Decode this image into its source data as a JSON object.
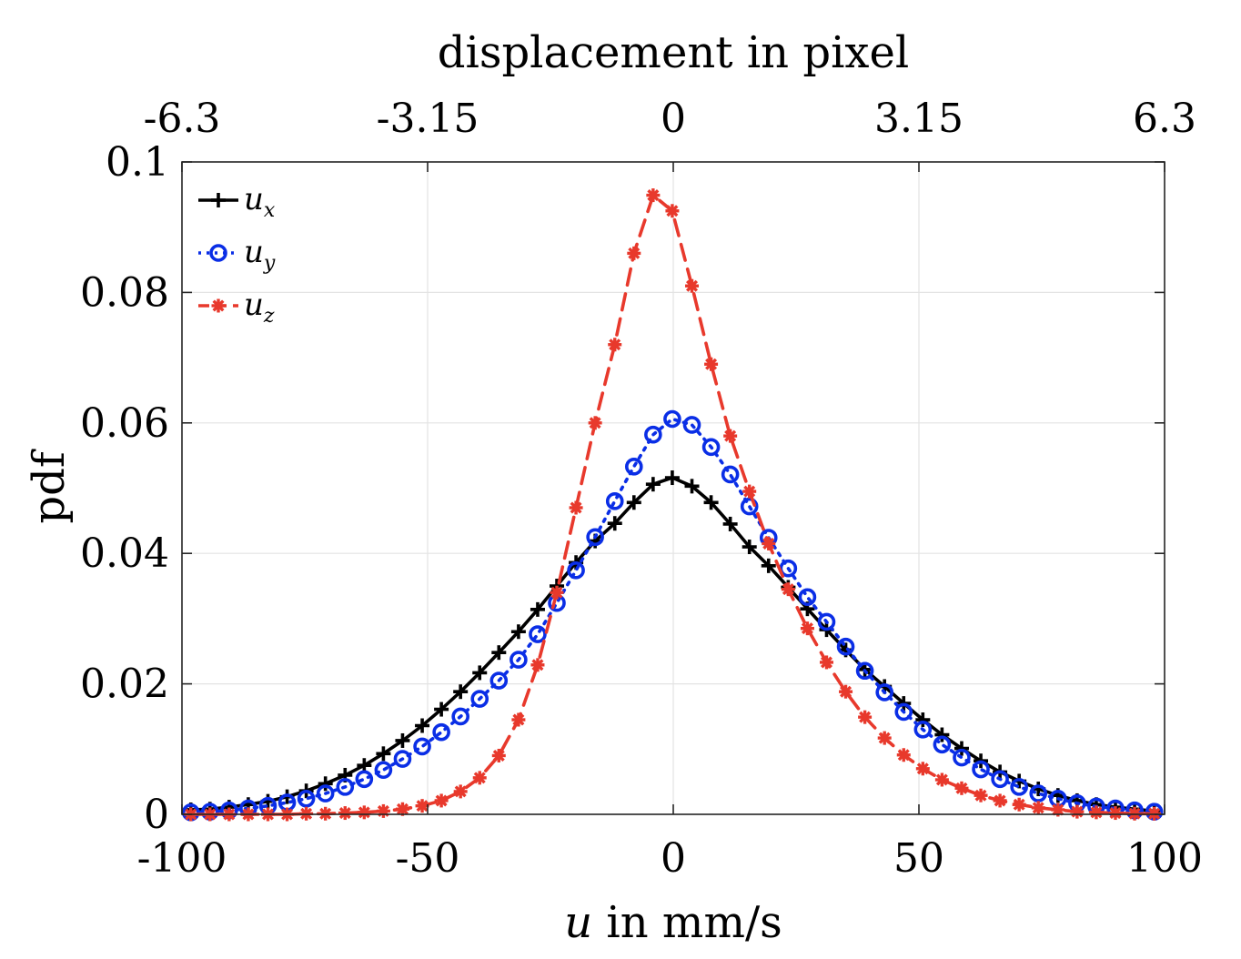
{
  "chart_data": {
    "type": "line",
    "xlabel_var": "u",
    "xlabel_rest": " in mm/s",
    "ylabel": "pdf",
    "top_xlabel": "displacement in pixel",
    "xlim": [
      -100,
      100
    ],
    "ylim": [
      0,
      0.1
    ],
    "xticks": [
      -100,
      -50,
      0,
      50,
      100
    ],
    "xtick_labels": [
      "-100",
      "-50",
      "0",
      "50",
      "100"
    ],
    "yticks": [
      0,
      0.02,
      0.04,
      0.06,
      0.08,
      0.1
    ],
    "ytick_labels": [
      "0",
      "0.02",
      "0.04",
      "0.06",
      "0.08",
      "0.1"
    ],
    "top_xticks": [
      -100,
      -50,
      0,
      50,
      100
    ],
    "top_xtick_labels": [
      "-6.3",
      "-3.15",
      "0",
      "3.15",
      "6.3"
    ],
    "grid": true,
    "legend_position": "top-left",
    "x": [
      -98.2,
      -94.3,
      -90.4,
      -86.5,
      -82.5,
      -78.6,
      -74.7,
      -70.8,
      -66.8,
      -62.9,
      -59.0,
      -55.1,
      -51.1,
      -47.2,
      -43.3,
      -39.4,
      -35.5,
      -31.5,
      -27.6,
      -23.7,
      -19.8,
      -15.9,
      -11.9,
      -8.0,
      -4.1,
      -0.2,
      3.8,
      7.7,
      11.6,
      15.5,
      19.4,
      23.4,
      27.3,
      31.2,
      35.1,
      39.0,
      43.0,
      46.9,
      50.8,
      54.7,
      58.7,
      62.6,
      66.5,
      70.4,
      74.3,
      78.3,
      82.2,
      86.1,
      90.0,
      93.9,
      97.9
    ],
    "series": [
      {
        "name_base": "u",
        "name_sub": "x",
        "color": "#000000",
        "line": "solid",
        "marker": "plus",
        "values": [
          0.0007,
          0.0008,
          0.0011,
          0.0015,
          0.002,
          0.0027,
          0.0036,
          0.0047,
          0.006,
          0.0075,
          0.0093,
          0.0113,
          0.0136,
          0.0161,
          0.0188,
          0.0217,
          0.0248,
          0.028,
          0.0314,
          0.035,
          0.0386,
          0.0419,
          0.0446,
          0.0478,
          0.0506,
          0.0516,
          0.0503,
          0.0478,
          0.0445,
          0.041,
          0.0381,
          0.0348,
          0.0315,
          0.0283,
          0.0252,
          0.0222,
          0.0196,
          0.017,
          0.0145,
          0.0122,
          0.0101,
          0.0082,
          0.0065,
          0.0051,
          0.0039,
          0.0029,
          0.0021,
          0.0015,
          0.0011,
          0.0008,
          0.0005
        ]
      },
      {
        "name_base": "u",
        "name_sub": "y",
        "color": "#0a2ee6",
        "line": "dotted",
        "marker": "circle",
        "values": [
          0.0003,
          0.0004,
          0.0006,
          0.0009,
          0.0013,
          0.0018,
          0.0024,
          0.0032,
          0.0042,
          0.0054,
          0.0068,
          0.0085,
          0.0104,
          0.0126,
          0.015,
          0.0177,
          0.0205,
          0.0237,
          0.0276,
          0.0324,
          0.0374,
          0.0425,
          0.048,
          0.0533,
          0.0582,
          0.0606,
          0.0597,
          0.0563,
          0.0521,
          0.0472,
          0.0424,
          0.0377,
          0.0333,
          0.0295,
          0.0257,
          0.022,
          0.0187,
          0.0157,
          0.013,
          0.0107,
          0.0087,
          0.0069,
          0.0054,
          0.0042,
          0.0032,
          0.0024,
          0.0017,
          0.0012,
          0.0009,
          0.0006,
          0.0004
        ]
      },
      {
        "name_base": "u",
        "name_sub": "z",
        "color": "#e8392c",
        "line": "dashed",
        "marker": "asterisk",
        "values": [
          0.0,
          0.0,
          0.0,
          0.0,
          0.0,
          0.0,
          0.0001,
          0.0001,
          0.0002,
          0.0003,
          0.0005,
          0.0008,
          0.0013,
          0.0021,
          0.0035,
          0.0056,
          0.009,
          0.0145,
          0.0229,
          0.034,
          0.047,
          0.06,
          0.072,
          0.086,
          0.0949,
          0.0925,
          0.081,
          0.069,
          0.058,
          0.0495,
          0.0415,
          0.0345,
          0.0285,
          0.0233,
          0.0188,
          0.0149,
          0.0117,
          0.0091,
          0.007,
          0.0053,
          0.004,
          0.0029,
          0.0021,
          0.0015,
          0.001,
          0.0007,
          0.0004,
          0.0003,
          0.0002,
          0.0001,
          0.0001
        ]
      }
    ]
  }
}
